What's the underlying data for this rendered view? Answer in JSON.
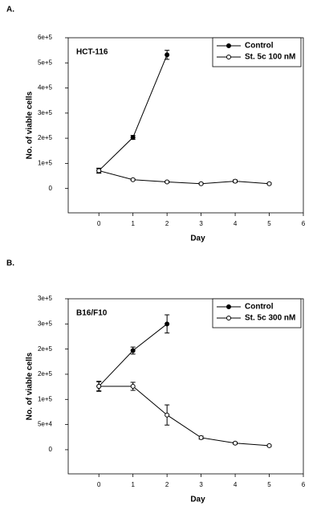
{
  "chart_data": [
    {
      "type": "line",
      "panel_label": "A.",
      "annotation": "HCT-116",
      "x_label": "Day",
      "y_label": "No. of viable cells",
      "x": [
        0,
        1,
        2,
        3,
        4,
        5
      ],
      "series": [
        {
          "name": "Control",
          "color": "#000000",
          "fill": "#000000",
          "values": [
            71000,
            203000,
            532000,
            null,
            null,
            null
          ],
          "errors": [
            10000,
            8000,
            18000,
            null,
            null,
            null
          ]
        },
        {
          "name": "St. 5c 100 nM",
          "color": "#000000",
          "fill": "#ffffff",
          "values": [
            71000,
            35000,
            26000,
            19000,
            29000,
            19000
          ],
          "errors": [
            8000,
            3000,
            3000,
            3000,
            5000,
            3000
          ]
        }
      ],
      "xlim": [
        -0.9,
        6
      ],
      "xticks": [
        0,
        1,
        2,
        3,
        4,
        5,
        6
      ],
      "ylim": [
        -97000,
        600000
      ],
      "yticks": [
        0,
        {
          "value": 100000,
          "label": "1e+5"
        },
        {
          "value": 200000,
          "label": "2e+5"
        },
        {
          "value": 300000,
          "label": "3e+5"
        },
        {
          "value": 400000,
          "label": "4e+5"
        },
        {
          "value": 500000,
          "label": "5e+5"
        },
        {
          "value": 600000,
          "label": "6e+5"
        }
      ],
      "legend": "upper right"
    },
    {
      "type": "line",
      "panel_label": "B.",
      "annotation": "B16/F10",
      "x_label": "Day",
      "y_label": "No. of viable cells",
      "x": [
        0,
        1,
        2,
        3,
        4,
        5
      ],
      "series": [
        {
          "name": "Control",
          "color": "#000000",
          "fill": "#000000",
          "values": [
            126000,
            197000,
            250000,
            null,
            null,
            null
          ],
          "errors": [
            10000,
            7000,
            18000,
            null,
            null,
            null
          ]
        },
        {
          "name": "St. 5c 300 nM",
          "color": "#000000",
          "fill": "#ffffff",
          "values": [
            126000,
            126000,
            69000,
            24000,
            13000,
            8000
          ],
          "errors": [
            9000,
            8000,
            20000,
            3000,
            2000,
            1500
          ]
        }
      ],
      "xlim": [
        -0.9,
        6
      ],
      "xticks": [
        0,
        1,
        2,
        3,
        4,
        5,
        6
      ],
      "ylim": [
        -48000,
        300000
      ],
      "yticks": [
        0,
        {
          "value": 50000,
          "label": "5e+4"
        },
        {
          "value": 100000,
          "label": "1e+5"
        },
        {
          "value": 150000,
          "label": "2e+5"
        },
        {
          "value": 200000,
          "label": "2e+5"
        },
        {
          "value": 250000,
          "label": "3e+5"
        },
        {
          "value": 300000,
          "label": "3e+5"
        }
      ],
      "legend": "upper right"
    }
  ]
}
